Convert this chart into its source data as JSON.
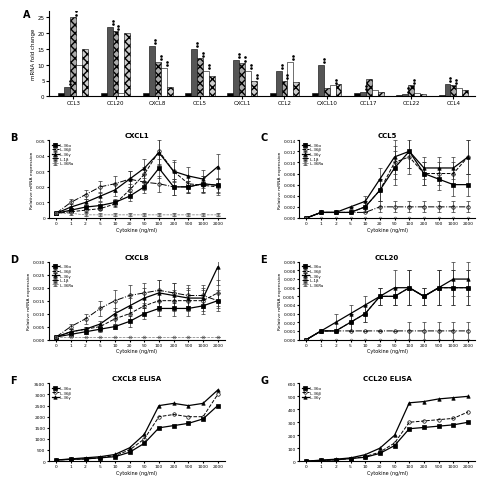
{
  "panel_A": {
    "categories": [
      "CCL3",
      "CCL20",
      "CXCL8",
      "CCL5",
      "CXCL1",
      "CCL2",
      "CXCL10",
      "CCL17",
      "CCL22",
      "CCL4"
    ],
    "bars": {
      "IL36a": [
        1.0,
        1.0,
        1.0,
        1.0,
        1.0,
        1.0,
        1.0,
        1.0,
        0.5,
        0.5
      ],
      "IL36b": [
        3.0,
        22.0,
        16.0,
        15.0,
        11.5,
        8.0,
        10.0,
        1.5,
        0.7,
        4.0
      ],
      "IL36g": [
        25.0,
        20.5,
        11.0,
        12.0,
        10.5,
        5.0,
        2.5,
        5.5,
        3.5,
        3.5
      ],
      "IL1b": [
        10.0,
        1.2,
        9.0,
        8.0,
        8.0,
        11.0,
        3.5,
        2.0,
        1.2,
        2.5
      ],
      "IL36Ra": [
        15.0,
        20.0,
        3.0,
        6.5,
        5.0,
        4.5,
        4.0,
        1.5,
        0.8,
        2.0
      ]
    },
    "ylabel": "mRNA fold change",
    "colors": [
      "#000000",
      "#555555",
      "#aaaaaa",
      "#ffffff",
      "#cccccc"
    ],
    "hatches": [
      "",
      "",
      "xxxx",
      "",
      "xxxx"
    ],
    "significance": {
      "CCL3": [
        false,
        true,
        true,
        false,
        false
      ],
      "CCL20": [
        false,
        true,
        true,
        false,
        false
      ],
      "CXCL8": [
        false,
        true,
        true,
        true,
        false
      ],
      "CCL5": [
        false,
        true,
        true,
        true,
        false
      ],
      "CXCL1": [
        false,
        true,
        true,
        true,
        true
      ],
      "CCL2": [
        false,
        true,
        true,
        true,
        false
      ],
      "CXCL10": [
        false,
        true,
        false,
        true,
        false
      ],
      "CCL17": [
        false,
        true,
        false,
        false,
        false
      ],
      "CCL22": [
        false,
        true,
        true,
        false,
        false
      ],
      "CCL4": [
        false,
        true,
        true,
        false,
        false
      ]
    }
  },
  "x_conc": [
    0,
    1,
    2,
    5,
    10,
    20,
    50,
    100,
    200,
    500,
    1000,
    2000
  ],
  "panel_B": {
    "title": "CXCL1",
    "ylabel": "Relative mRNA expression",
    "xlabel": "Cytokine (ng/ml)",
    "ylim": [
      0,
      0.05
    ],
    "yticks": [
      0,
      0.01,
      0.02,
      0.03,
      0.04,
      0.05
    ],
    "ytick_labels": [
      "0",
      "0.01",
      "0.02",
      "0.03",
      "0.04",
      "0.05"
    ],
    "lines": {
      "IL-36a": [
        0.003,
        0.005,
        0.007,
        0.008,
        0.01,
        0.014,
        0.02,
        0.032,
        0.02,
        0.02,
        0.022,
        0.021
      ],
      "IL-36b": [
        0.003,
        0.004,
        0.005,
        0.006,
        0.009,
        0.018,
        0.028,
        0.043,
        0.03,
        0.022,
        0.021,
        0.02
      ],
      "IL-36g": [
        0.003,
        0.007,
        0.01,
        0.014,
        0.018,
        0.025,
        0.032,
        0.042,
        0.03,
        0.027,
        0.025,
        0.033
      ],
      "IL-1b": [
        0.003,
        0.01,
        0.015,
        0.02,
        0.022,
        0.025,
        0.023,
        0.022,
        0.02,
        0.02,
        0.022,
        0.021
      ],
      "IL-36Ra": [
        0.003,
        0.003,
        0.002,
        0.002,
        0.002,
        0.002,
        0.002,
        0.002,
        0.002,
        0.002,
        0.002,
        0.002
      ]
    },
    "errors": {
      "IL-36a": [
        0.001,
        0.001,
        0.001,
        0.002,
        0.002,
        0.003,
        0.004,
        0.006,
        0.005,
        0.004,
        0.005,
        0.004
      ],
      "IL-36b": [
        0.001,
        0.001,
        0.001,
        0.001,
        0.002,
        0.004,
        0.005,
        0.008,
        0.006,
        0.005,
        0.005,
        0.005
      ],
      "IL-36g": [
        0.001,
        0.002,
        0.002,
        0.003,
        0.004,
        0.005,
        0.006,
        0.008,
        0.007,
        0.006,
        0.006,
        0.008
      ],
      "IL-1b": [
        0.001,
        0.002,
        0.003,
        0.004,
        0.005,
        0.005,
        0.005,
        0.005,
        0.005,
        0.004,
        0.005,
        0.005
      ],
      "IL-36Ra": [
        0.001,
        0.001,
        0.001,
        0.001,
        0.001,
        0.001,
        0.001,
        0.001,
        0.001,
        0.001,
        0.001,
        0.001
      ]
    }
  },
  "panel_C": {
    "title": "CCL5",
    "ylabel": "Relative mRNA expression",
    "xlabel": "Cytokine (ng/ml)",
    "ylim": [
      0,
      0.014
    ],
    "yticks": [
      0.0,
      0.002,
      0.004,
      0.006,
      0.008,
      0.01,
      0.012,
      0.014
    ],
    "ytick_labels": [
      "0.000",
      "0.002",
      "0.004",
      "0.006",
      "0.008",
      "0.010",
      "0.012",
      "0.014"
    ],
    "lines": {
      "IL-36a": [
        0.0,
        0.001,
        0.001,
        0.001,
        0.002,
        0.005,
        0.009,
        0.012,
        0.008,
        0.007,
        0.006,
        0.006
      ],
      "IL-36b": [
        0.0,
        0.001,
        0.001,
        0.001,
        0.002,
        0.005,
        0.01,
        0.011,
        0.008,
        0.008,
        0.008,
        0.011
      ],
      "IL-36g": [
        0.0,
        0.001,
        0.001,
        0.002,
        0.003,
        0.007,
        0.011,
        0.012,
        0.009,
        0.009,
        0.009,
        0.011
      ],
      "IL-1b": [
        0.0,
        0.001,
        0.001,
        0.001,
        0.001,
        0.002,
        0.002,
        0.002,
        0.002,
        0.002,
        0.002,
        0.002
      ],
      "IL-36Ra": [
        0.0,
        0.0,
        0.0,
        0.0,
        0.0,
        0.0,
        0.0,
        0.0,
        0.0,
        0.0,
        0.0,
        0.0
      ]
    },
    "errors": {
      "IL-36a": [
        0.0,
        0.0,
        0.0,
        0.0,
        0.001,
        0.002,
        0.003,
        0.003,
        0.002,
        0.002,
        0.002,
        0.002
      ],
      "IL-36b": [
        0.0,
        0.0,
        0.0,
        0.0,
        0.001,
        0.002,
        0.003,
        0.003,
        0.002,
        0.002,
        0.002,
        0.003
      ],
      "IL-36g": [
        0.0,
        0.0,
        0.0,
        0.0,
        0.001,
        0.002,
        0.003,
        0.003,
        0.002,
        0.002,
        0.002,
        0.003
      ],
      "IL-1b": [
        0.0,
        0.0,
        0.0,
        0.0,
        0.0,
        0.001,
        0.001,
        0.001,
        0.001,
        0.001,
        0.001,
        0.001
      ],
      "IL-36Ra": [
        0.0,
        0.0,
        0.0,
        0.0,
        0.0,
        0.0,
        0.0,
        0.0,
        0.0,
        0.0,
        0.0,
        0.0
      ]
    }
  },
  "panel_D": {
    "title": "CXCL8",
    "ylabel": "Relative mRNA expression",
    "xlabel": "Cytokine (ng/ml)",
    "ylim": [
      0,
      0.03
    ],
    "yticks": [
      0.0,
      0.005,
      0.01,
      0.015,
      0.02,
      0.025,
      0.03
    ],
    "ytick_labels": [
      "0.000",
      "0.005",
      "0.010",
      "0.015",
      "0.020",
      "0.025",
      "0.030"
    ],
    "lines": {
      "IL-36a": [
        0.001,
        0.002,
        0.003,
        0.004,
        0.005,
        0.007,
        0.01,
        0.012,
        0.012,
        0.012,
        0.013,
        0.015
      ],
      "IL-36b": [
        0.001,
        0.003,
        0.004,
        0.005,
        0.008,
        0.01,
        0.013,
        0.015,
        0.015,
        0.015,
        0.015,
        0.018
      ],
      "IL-36g": [
        0.001,
        0.003,
        0.004,
        0.006,
        0.01,
        0.013,
        0.016,
        0.018,
        0.017,
        0.016,
        0.016,
        0.028
      ],
      "IL-1b": [
        0.001,
        0.005,
        0.008,
        0.012,
        0.015,
        0.017,
        0.018,
        0.019,
        0.018,
        0.017,
        0.017,
        0.015
      ],
      "IL-36Ra": [
        0.001,
        0.001,
        0.001,
        0.001,
        0.001,
        0.001,
        0.001,
        0.001,
        0.001,
        0.001,
        0.001,
        0.001
      ]
    },
    "errors": {
      "IL-36a": [
        0.0,
        0.001,
        0.001,
        0.001,
        0.001,
        0.002,
        0.002,
        0.003,
        0.003,
        0.003,
        0.003,
        0.003
      ],
      "IL-36b": [
        0.0,
        0.001,
        0.001,
        0.001,
        0.002,
        0.002,
        0.003,
        0.004,
        0.004,
        0.004,
        0.004,
        0.005
      ],
      "IL-36g": [
        0.0,
        0.001,
        0.001,
        0.001,
        0.002,
        0.003,
        0.004,
        0.005,
        0.005,
        0.004,
        0.004,
        0.007
      ],
      "IL-1b": [
        0.0,
        0.001,
        0.002,
        0.003,
        0.004,
        0.004,
        0.004,
        0.004,
        0.004,
        0.004,
        0.004,
        0.004
      ],
      "IL-36Ra": [
        0.0,
        0.0,
        0.0,
        0.0,
        0.0,
        0.0,
        0.0,
        0.0,
        0.0,
        0.0,
        0.0,
        0.0
      ]
    }
  },
  "panel_E": {
    "title": "CCL20",
    "ylabel": "Relative mRNA expression",
    "xlabel": "Cytokine (ng/ml)",
    "ylim": [
      0,
      0.009
    ],
    "yticks": [
      0.0,
      0.001,
      0.002,
      0.003,
      0.004,
      0.005,
      0.006,
      0.007,
      0.008,
      0.009
    ],
    "ytick_labels": [
      "0.000",
      "0.001",
      "0.002",
      "0.003",
      "0.004",
      "0.005",
      "0.006",
      "0.007",
      "0.008",
      "0.009"
    ],
    "lines": {
      "IL-36a": [
        0.0,
        0.001,
        0.001,
        0.002,
        0.003,
        0.005,
        0.005,
        0.006,
        0.005,
        0.006,
        0.006,
        0.006
      ],
      "IL-36b": [
        0.0,
        0.001,
        0.001,
        0.002,
        0.003,
        0.005,
        0.005,
        0.006,
        0.005,
        0.006,
        0.006,
        0.006
      ],
      "IL-36g": [
        0.0,
        0.001,
        0.002,
        0.003,
        0.004,
        0.005,
        0.006,
        0.006,
        0.005,
        0.006,
        0.007,
        0.007
      ],
      "IL-1b": [
        0.0,
        0.001,
        0.001,
        0.001,
        0.001,
        0.001,
        0.001,
        0.001,
        0.001,
        0.001,
        0.001,
        0.001
      ],
      "IL-36Ra": [
        0.0,
        0.0,
        0.0,
        0.0,
        0.0,
        0.0,
        0.0,
        0.0,
        0.0,
        0.0,
        0.0,
        0.0
      ]
    },
    "errors": {
      "IL-36a": [
        0.0,
        0.0,
        0.0,
        0.001,
        0.001,
        0.001,
        0.001,
        0.002,
        0.001,
        0.002,
        0.002,
        0.002
      ],
      "IL-36b": [
        0.0,
        0.0,
        0.0,
        0.001,
        0.001,
        0.001,
        0.001,
        0.002,
        0.001,
        0.002,
        0.002,
        0.002
      ],
      "IL-36g": [
        0.0,
        0.0,
        0.001,
        0.001,
        0.001,
        0.001,
        0.002,
        0.002,
        0.001,
        0.002,
        0.002,
        0.002
      ],
      "IL-1b": [
        0.0,
        0.0,
        0.0,
        0.0,
        0.0,
        0.0,
        0.0,
        0.001,
        0.001,
        0.001,
        0.001,
        0.001
      ],
      "IL-36Ra": [
        0.0,
        0.0,
        0.0,
        0.0,
        0.0,
        0.0,
        0.0,
        0.0,
        0.0,
        0.0,
        0.0,
        0.0
      ]
    }
  },
  "panel_F": {
    "title": "CXCL8 ELISA",
    "ylabel": "",
    "xlabel": "Cytokine (ng/ml)",
    "ylim": [
      0,
      3500
    ],
    "yticks": [
      0,
      500,
      1000,
      1500,
      2000,
      2500,
      3000,
      3500
    ],
    "ytick_labels": [
      "0",
      "500",
      "1000",
      "1500",
      "2000",
      "2500",
      "3000",
      "3500"
    ],
    "lines": {
      "IL-36a": [
        50,
        80,
        100,
        150,
        200,
        400,
        800,
        1500,
        1600,
        1700,
        1900,
        2500
      ],
      "IL-36b": [
        50,
        80,
        100,
        150,
        250,
        500,
        1000,
        2000,
        2100,
        2000,
        2000,
        3000
      ],
      "IL-36g": [
        50,
        100,
        150,
        200,
        300,
        600,
        1200,
        2500,
        2600,
        2500,
        2600,
        3200
      ]
    }
  },
  "panel_G": {
    "title": "CCL20 ELISA",
    "ylabel": "",
    "xlabel": "Cytokine (ng/ml)",
    "ylim": [
      0,
      600
    ],
    "yticks": [
      0,
      100,
      200,
      300,
      400,
      500,
      600
    ],
    "ytick_labels": [
      "0",
      "100",
      "200",
      "300",
      "400",
      "500",
      "600"
    ],
    "lines": {
      "IL-36a": [
        0,
        5,
        10,
        20,
        30,
        60,
        120,
        250,
        260,
        270,
        280,
        300
      ],
      "IL-36b": [
        0,
        5,
        10,
        20,
        35,
        70,
        140,
        300,
        310,
        320,
        330,
        380
      ],
      "IL-36g": [
        0,
        8,
        15,
        25,
        50,
        100,
        200,
        450,
        460,
        480,
        490,
        500
      ]
    }
  },
  "line_styles_5": {
    "IL-36a": {
      "color": "#000000",
      "marker": "s",
      "ls": "-",
      "mfc": "#000000",
      "ms": 2.5,
      "lw": 0.9
    },
    "IL-36b": {
      "color": "#000000",
      "marker": "o",
      "ls": "--",
      "mfc": "none",
      "ms": 2.5,
      "lw": 0.7
    },
    "IL-36g": {
      "color": "#000000",
      "marker": "^",
      "ls": "-",
      "mfc": "#000000",
      "ms": 2.5,
      "lw": 0.9
    },
    "IL-1b": {
      "color": "#000000",
      "marker": "o",
      "ls": "-.",
      "mfc": "none",
      "ms": 2.5,
      "lw": 0.7
    },
    "IL-36Ra": {
      "color": "#777777",
      "marker": "o",
      "ls": "--",
      "mfc": "none",
      "ms": 2.0,
      "lw": 0.5
    }
  },
  "line_styles_3": {
    "IL-36a": {
      "color": "#000000",
      "marker": "s",
      "ls": "-",
      "mfc": "#000000",
      "ms": 2.5,
      "lw": 0.9
    },
    "IL-36b": {
      "color": "#000000",
      "marker": "o",
      "ls": "--",
      "mfc": "none",
      "ms": 2.5,
      "lw": 0.7
    },
    "IL-36g": {
      "color": "#000000",
      "marker": "^",
      "ls": "-",
      "mfc": "#000000",
      "ms": 2.5,
      "lw": 0.9
    }
  },
  "line_label_map": {
    "IL-36a": "IL-36α",
    "IL-36b": "IL-36β",
    "IL-36g": "IL-36γ",
    "IL-1b": "IL-1β",
    "IL-36Ra": "IL-36Ra"
  },
  "x_tick_labels": [
    "0",
    "1",
    "2",
    "5",
    "10",
    "20",
    "50",
    "100",
    "200",
    "500",
    "1000",
    "2000"
  ]
}
